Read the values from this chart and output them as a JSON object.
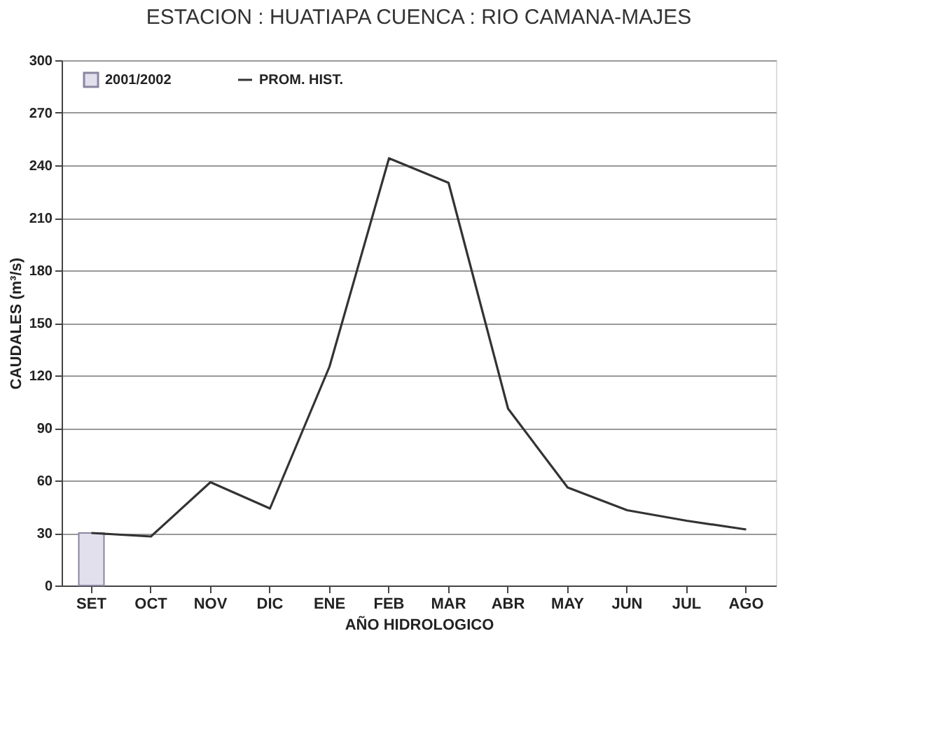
{
  "chart_data": {
    "type": "line",
    "title": "ESTACION : HUATIAPA    CUENCA : RIO CAMANA-MAJES",
    "xlabel": "AÑO HIDROLOGICO",
    "ylabel": "CAUDALES (m³/s)",
    "categories": [
      "SET",
      "OCT",
      "NOV",
      "DIC",
      "ENE",
      "FEB",
      "MAR",
      "ABR",
      "MAY",
      "JUN",
      "JUL",
      "AGO"
    ],
    "series": [
      {
        "name": "2001/2002",
        "type": "bar",
        "color": "#e3e0ee",
        "values": [
          30,
          null,
          null,
          null,
          null,
          null,
          null,
          null,
          null,
          null,
          null,
          null
        ]
      },
      {
        "name": "PROM. HIST.",
        "color": "#333333",
        "values": [
          30,
          28,
          59,
          44,
          125,
          244,
          230,
          101,
          56,
          43,
          37,
          32
        ]
      }
    ],
    "ylim": [
      0,
      300
    ],
    "yticks": [
      0,
      30,
      60,
      90,
      120,
      150,
      180,
      210,
      240,
      270,
      300
    ],
    "grid": "y",
    "legend": "top left"
  }
}
